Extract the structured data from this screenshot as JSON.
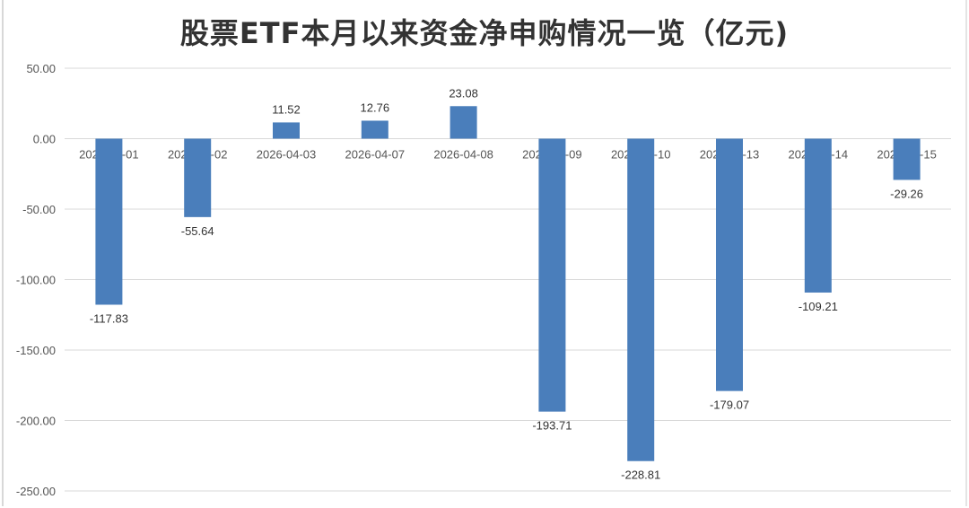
{
  "chart_data": {
    "type": "bar",
    "title": "股票ETF本月以来资金净申购情况一览（亿元)",
    "xlabel": "",
    "ylabel": "",
    "categories": [
      "2026-04-01",
      "2026-04-02",
      "2026-04-03",
      "2026-04-07",
      "2026-04-08",
      "2026-04-09",
      "2026-04-10",
      "2026-04-13",
      "2026-04-14",
      "2026-04-15"
    ],
    "values": [
      -117.83,
      -55.64,
      11.52,
      12.76,
      23.08,
      -193.71,
      -228.81,
      -179.07,
      -109.21,
      -29.26
    ],
    "value_labels": [
      "-117.83",
      "-55.64",
      "11.52",
      "12.76",
      "23.08",
      "-193.71",
      "-228.81",
      "-179.07",
      "-109.21",
      "-29.26"
    ],
    "ylim": [
      -250,
      50
    ],
    "yticks": [
      50,
      0,
      -50,
      -100,
      -150,
      -200,
      -250
    ],
    "ytick_labels": [
      "50.00",
      "0.00",
      "-50.00",
      "-100.00",
      "-150.00",
      "-200.00",
      "-250.00"
    ],
    "grid": true,
    "bar_color": "#4a7ebb",
    "grid_color": "#d9d9d9"
  }
}
